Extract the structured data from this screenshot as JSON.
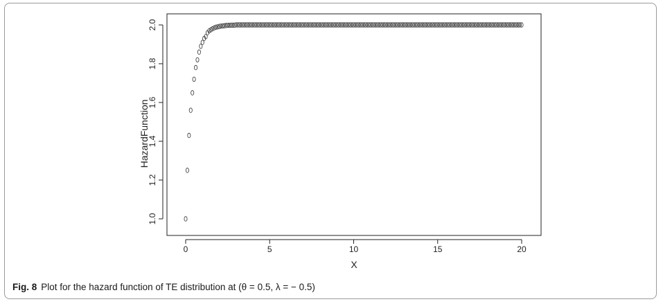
{
  "caption": {
    "label": "Fig. 8",
    "text": "Plot for the hazard function of TE distribution at (θ = 0.5, λ = − 0.5)"
  },
  "chart_data": {
    "type": "scatter",
    "title": "",
    "xlabel": "X",
    "ylabel": "HazardFunction",
    "xlim": [
      0,
      20
    ],
    "ylim": [
      1.0,
      2.0
    ],
    "xticks": [
      "0",
      "5",
      "10",
      "15",
      "20"
    ],
    "yticks": [
      "1.0",
      "1.2",
      "1.4",
      "1.6",
      "1.8",
      "2.0"
    ],
    "grid": false,
    "marker": "open-circle",
    "x": [
      0.0,
      0.1,
      0.2,
      0.3,
      0.4,
      0.5,
      0.6,
      0.7,
      0.8,
      0.9,
      1.0,
      1.1,
      1.2,
      1.3,
      1.4,
      1.5,
      1.6,
      1.7,
      1.8,
      1.9,
      2.0,
      2.1,
      2.2,
      2.3,
      2.4,
      2.5,
      2.6,
      2.7,
      2.8,
      2.9,
      3.0,
      3.1,
      3.2,
      3.3,
      3.4,
      3.5,
      3.6,
      3.7,
      3.8,
      3.9,
      4.0,
      4.1,
      4.2,
      4.3,
      4.4,
      4.5,
      4.6,
      4.7,
      4.8,
      4.9,
      5.0,
      5.1,
      5.2,
      5.3,
      5.4,
      5.5,
      5.6,
      5.7,
      5.8,
      5.9,
      6.0,
      6.1,
      6.2,
      6.3,
      6.4,
      6.5,
      6.6,
      6.7,
      6.8,
      6.9,
      7.0,
      7.1,
      7.2,
      7.3,
      7.4,
      7.5,
      7.6,
      7.7,
      7.8,
      7.9,
      8.0,
      8.1,
      8.2,
      8.3,
      8.4,
      8.5,
      8.6,
      8.7,
      8.8,
      8.9,
      9.0,
      9.1,
      9.2,
      9.3,
      9.4,
      9.5,
      9.6,
      9.7,
      9.8,
      9.9,
      10.0,
      10.1,
      10.2,
      10.3,
      10.4,
      10.5,
      10.6,
      10.7,
      10.8,
      10.9,
      11.0,
      11.1,
      11.2,
      11.3,
      11.4,
      11.5,
      11.6,
      11.7,
      11.8,
      11.9,
      12.0,
      12.1,
      12.2,
      12.3,
      12.4,
      12.5,
      12.6,
      12.7,
      12.8,
      12.9,
      13.0,
      13.1,
      13.2,
      13.3,
      13.4,
      13.5,
      13.6,
      13.7,
      13.8,
      13.9,
      14.0,
      14.1,
      14.2,
      14.3,
      14.4,
      14.5,
      14.6,
      14.7,
      14.8,
      14.9,
      15.0,
      15.1,
      15.2,
      15.3,
      15.4,
      15.5,
      15.6,
      15.7,
      15.8,
      15.9,
      16.0,
      16.1,
      16.2,
      16.3,
      16.4,
      16.5,
      16.6,
      16.7,
      16.8,
      16.9,
      17.0,
      17.1,
      17.2,
      17.3,
      17.4,
      17.5,
      17.6,
      17.7,
      17.8,
      17.9,
      18.0,
      18.1,
      18.2,
      18.3,
      18.4,
      18.5,
      18.6,
      18.7,
      18.8,
      18.9,
      19.0,
      19.1,
      19.2,
      19.3,
      19.4,
      19.5,
      19.6,
      19.7,
      19.8,
      19.9,
      20.0
    ],
    "y": [
      1.0,
      1.25,
      1.43,
      1.56,
      1.65,
      1.72,
      1.78,
      1.82,
      1.86,
      1.89,
      1.91,
      1.93,
      1.94,
      1.96,
      1.97,
      1.975,
      1.98,
      1.985,
      1.988,
      1.99,
      1.992,
      1.994,
      1.995,
      1.996,
      1.997,
      1.998,
      1.998,
      1.999,
      1.999,
      1.999,
      2.0,
      2.0,
      2.0,
      2.0,
      2.0,
      2.0,
      2.0,
      2.0,
      2.0,
      2.0,
      2.0,
      2.0,
      2.0,
      2.0,
      2.0,
      2.0,
      2.0,
      2.0,
      2.0,
      2.0,
      2.0,
      2.0,
      2.0,
      2.0,
      2.0,
      2.0,
      2.0,
      2.0,
      2.0,
      2.0,
      2.0,
      2.0,
      2.0,
      2.0,
      2.0,
      2.0,
      2.0,
      2.0,
      2.0,
      2.0,
      2.0,
      2.0,
      2.0,
      2.0,
      2.0,
      2.0,
      2.0,
      2.0,
      2.0,
      2.0,
      2.0,
      2.0,
      2.0,
      2.0,
      2.0,
      2.0,
      2.0,
      2.0,
      2.0,
      2.0,
      2.0,
      2.0,
      2.0,
      2.0,
      2.0,
      2.0,
      2.0,
      2.0,
      2.0,
      2.0,
      2.0,
      2.0,
      2.0,
      2.0,
      2.0,
      2.0,
      2.0,
      2.0,
      2.0,
      2.0,
      2.0,
      2.0,
      2.0,
      2.0,
      2.0,
      2.0,
      2.0,
      2.0,
      2.0,
      2.0,
      2.0,
      2.0,
      2.0,
      2.0,
      2.0,
      2.0,
      2.0,
      2.0,
      2.0,
      2.0,
      2.0,
      2.0,
      2.0,
      2.0,
      2.0,
      2.0,
      2.0,
      2.0,
      2.0,
      2.0,
      2.0,
      2.0,
      2.0,
      2.0,
      2.0,
      2.0,
      2.0,
      2.0,
      2.0,
      2.0,
      2.0,
      2.0,
      2.0,
      2.0,
      2.0,
      2.0,
      2.0,
      2.0,
      2.0,
      2.0,
      2.0,
      2.0,
      2.0,
      2.0,
      2.0,
      2.0,
      2.0,
      2.0,
      2.0,
      2.0,
      2.0,
      2.0,
      2.0,
      2.0,
      2.0,
      2.0,
      2.0,
      2.0,
      2.0,
      2.0,
      2.0,
      2.0,
      2.0,
      2.0,
      2.0,
      2.0,
      2.0,
      2.0,
      2.0,
      2.0,
      2.0,
      2.0,
      2.0,
      2.0,
      2.0,
      2.0,
      2.0,
      2.0,
      2.0,
      2.0,
      2.0
    ]
  }
}
